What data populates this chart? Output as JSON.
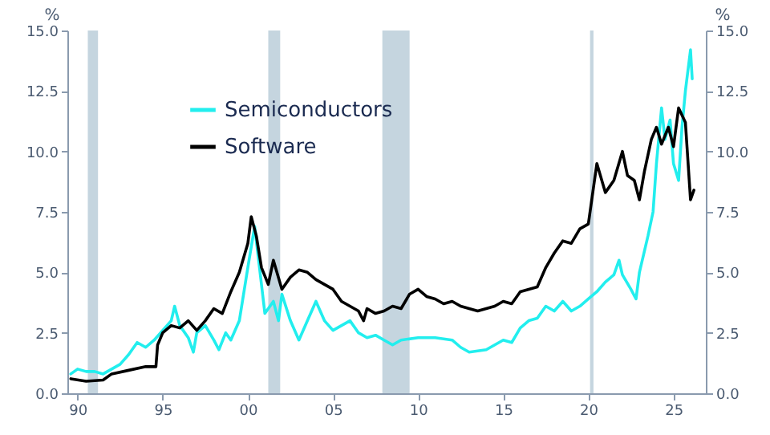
{
  "chart_data": {
    "type": "line",
    "ylabel": "%",
    "y2label": "%",
    "xlim": [
      1989.4,
      2026.9
    ],
    "xticks": [
      {
        "value": 1990,
        "label": "90"
      },
      {
        "value": 1995,
        "label": "95"
      },
      {
        "value": 2000,
        "label": "00"
      },
      {
        "value": 2005,
        "label": "05"
      },
      {
        "value": 2010,
        "label": "10"
      },
      {
        "value": 2015,
        "label": "15"
      },
      {
        "value": 2020,
        "label": "20"
      },
      {
        "value": 2025,
        "label": "25"
      }
    ],
    "ylim": [
      0,
      15
    ],
    "yticks": [
      {
        "value": 0,
        "label": "0.0"
      },
      {
        "value": 2.5,
        "label": "2.5"
      },
      {
        "value": 5,
        "label": "5.0"
      },
      {
        "value": 7.5,
        "label": "7.5"
      },
      {
        "value": 10,
        "label": "10.0"
      },
      {
        "value": 12.5,
        "label": "12.5"
      },
      {
        "value": 15,
        "label": "15.0"
      }
    ],
    "y2lim": [
      0,
      15
    ],
    "y2ticks": [
      {
        "value": 0,
        "label": "0.0"
      },
      {
        "value": 2.5,
        "label": "2.5"
      },
      {
        "value": 5,
        "label": "5.0"
      },
      {
        "value": 7.5,
        "label": "7.5"
      },
      {
        "value": 10,
        "label": "10.0"
      },
      {
        "value": 12.5,
        "label": "12.5"
      },
      {
        "value": 15,
        "label": "15.0"
      }
    ],
    "grid": false,
    "legend": "top left",
    "bands": [
      {
        "axis": "x",
        "from": 1990.6,
        "to": 1991.2,
        "color": "#c5d5df"
      },
      {
        "axis": "x",
        "from": 2001.2,
        "to": 2001.9,
        "color": "#c5d5df"
      },
      {
        "axis": "x",
        "from": 2007.9,
        "to": 2009.5,
        "color": "#c5d5df"
      },
      {
        "axis": "x",
        "from": 2020.1,
        "to": 2020.3,
        "color": "#c5d5df"
      }
    ],
    "series": [
      {
        "name": "Semiconductors",
        "color": "#22eeee",
        "x": [
          1989.6,
          1990,
          1990.5,
          1991,
          1991.5,
          1992,
          1992.5,
          1993,
          1993.5,
          1994,
          1994.5,
          1995,
          1995.5,
          1995.7,
          1996,
          1996.5,
          1996.8,
          1997,
          1997.5,
          1998,
          1998.3,
          1998.7,
          1999,
          1999.5,
          2000,
          2000.4,
          2000.8,
          2001,
          2001.5,
          2001.8,
          2002,
          2002.5,
          2003,
          2003.5,
          2004,
          2004.5,
          2005,
          2005.5,
          2006,
          2006.5,
          2007,
          2007.5,
          2008,
          2008.5,
          2009,
          2010,
          2011,
          2012,
          2012.5,
          2013,
          2014,
          2015,
          2015.5,
          2016,
          2016.5,
          2017,
          2017.5,
          2018,
          2018.5,
          2019,
          2019.5,
          2020,
          2020.5,
          2021,
          2021.5,
          2021.8,
          2022,
          2022.5,
          2022.8,
          2023,
          2023.5,
          2023.8,
          2024,
          2024.3,
          2024.5,
          2024.8,
          2025,
          2025.3,
          2025.5,
          2025.7,
          2026,
          2026.1
        ],
        "values": [
          0.8,
          1.0,
          0.9,
          0.9,
          0.8,
          1.0,
          1.2,
          1.6,
          2.1,
          1.9,
          2.2,
          2.6,
          3.0,
          3.6,
          2.8,
          2.3,
          1.7,
          2.5,
          2.8,
          2.2,
          1.8,
          2.5,
          2.2,
          3.0,
          5.2,
          6.9,
          4.5,
          3.3,
          3.8,
          3.0,
          4.1,
          3.0,
          2.2,
          3.0,
          3.8,
          3.0,
          2.6,
          2.8,
          3.0,
          2.5,
          2.3,
          2.4,
          2.2,
          2.0,
          2.2,
          2.3,
          2.3,
          2.2,
          1.9,
          1.7,
          1.8,
          2.2,
          2.1,
          2.7,
          3.0,
          3.1,
          3.6,
          3.4,
          3.8,
          3.4,
          3.6,
          3.9,
          4.2,
          4.6,
          4.9,
          5.5,
          4.9,
          4.3,
          3.9,
          5.0,
          6.5,
          7.5,
          9.5,
          11.8,
          10.5,
          11.3,
          9.5,
          8.8,
          11.0,
          12.5,
          14.2,
          13.0
        ]
      },
      {
        "name": "Software",
        "color": "#000000",
        "x": [
          1989.6,
          1990.5,
          1991.5,
          1992,
          1993,
          1994,
          1994.6,
          1994.7,
          1995,
          1995.5,
          1996,
          1996.5,
          1997,
          1997.5,
          1998,
          1998.5,
          1999,
          1999.5,
          2000,
          2000.2,
          2000.5,
          2000.8,
          2001.2,
          2001.5,
          2002,
          2002.5,
          2003,
          2003.5,
          2004,
          2004.5,
          2005,
          2005.5,
          2006,
          2006.5,
          2006.8,
          2007,
          2007.5,
          2008,
          2008.5,
          2009,
          2009.5,
          2010,
          2010.5,
          2011,
          2011.5,
          2012,
          2012.5,
          2013,
          2013.5,
          2014,
          2014.5,
          2015,
          2015.5,
          2016,
          2016.5,
          2017,
          2017.5,
          2018,
          2018.5,
          2019,
          2019.5,
          2020,
          2020.3,
          2020.5,
          2021,
          2021.5,
          2022,
          2022.3,
          2022.7,
          2023,
          2023.3,
          2023.7,
          2024,
          2024.3,
          2024.7,
          2025,
          2025.3,
          2025.7,
          2026,
          2026.2
        ],
        "values": [
          0.6,
          0.5,
          0.55,
          0.8,
          0.95,
          1.1,
          1.1,
          2.0,
          2.5,
          2.8,
          2.7,
          3.0,
          2.6,
          3.0,
          3.5,
          3.3,
          4.2,
          5.0,
          6.2,
          7.3,
          6.5,
          5.2,
          4.5,
          5.5,
          4.3,
          4.8,
          5.1,
          5.0,
          4.7,
          4.5,
          4.3,
          3.8,
          3.6,
          3.4,
          3.0,
          3.5,
          3.3,
          3.4,
          3.6,
          3.5,
          4.1,
          4.3,
          4.0,
          3.9,
          3.7,
          3.8,
          3.6,
          3.5,
          3.4,
          3.5,
          3.6,
          3.8,
          3.7,
          4.2,
          4.3,
          4.4,
          5.2,
          5.8,
          6.3,
          6.2,
          6.8,
          7.0,
          8.5,
          9.5,
          8.3,
          8.8,
          10.0,
          9.0,
          8.8,
          8.0,
          9.2,
          10.5,
          11.0,
          10.3,
          11.0,
          10.2,
          11.8,
          11.2,
          8.0,
          8.4
        ]
      }
    ]
  }
}
